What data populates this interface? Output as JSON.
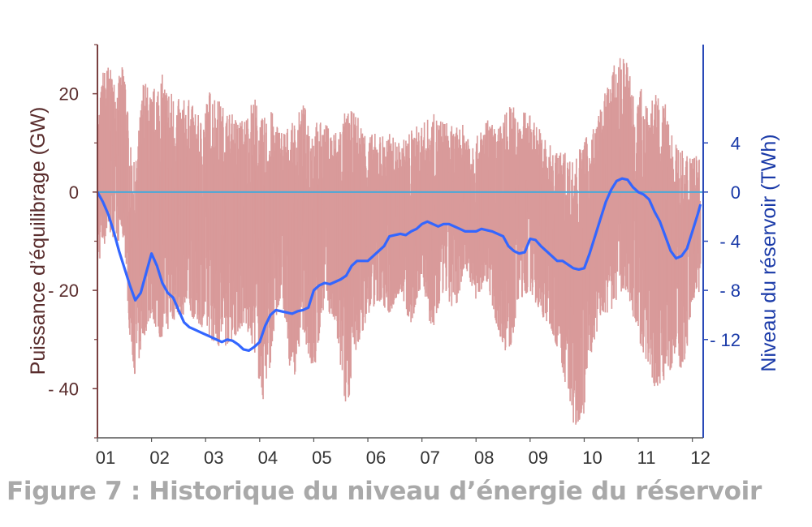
{
  "chart_data": {
    "type": "line",
    "caption": "Figure 7 : Historique du niveau d’énergie du réservoir",
    "xlabel": "",
    "x_tick_labels": [
      "01",
      "02",
      "03",
      "04",
      "05",
      "06",
      "07",
      "08",
      "09",
      "10",
      "11",
      "12"
    ],
    "xlim": [
      1,
      12.2
    ],
    "left_axis": {
      "label": "Puissance d’équilibrage (GW)",
      "ylim": [
        -50,
        30
      ],
      "tick_values": [
        20,
        0,
        -20,
        -40
      ],
      "tick_labels": [
        "20",
        "0",
        "- 20",
        "- 40"
      ],
      "color": "#5a2d2d"
    },
    "right_axis": {
      "label": "Niveau du réservoir (TWh)",
      "ylim": [
        -20,
        12
      ],
      "tick_values": [
        4,
        0,
        -4,
        -8,
        -12
      ],
      "tick_labels": [
        "4",
        "0",
        "- 4",
        "- 8",
        "- 12"
      ],
      "color": "#1a3aa8"
    },
    "grid": true,
    "zero_line_color": "#4aa8d8",
    "series": [
      {
        "axis": "left",
        "color": "#d99a9a",
        "style": "dense-bars",
        "x": [
          1.0,
          1.1,
          1.2,
          1.35,
          1.5,
          1.6,
          1.7,
          1.85,
          2.0,
          2.15,
          2.3,
          2.5,
          2.7,
          2.9,
          3.1,
          3.3,
          3.5,
          3.7,
          3.9,
          4.05,
          4.2,
          4.4,
          4.6,
          4.8,
          5.0,
          5.2,
          5.4,
          5.6,
          5.8,
          6.0,
          6.2,
          6.4,
          6.6,
          6.8,
          7.0,
          7.2,
          7.4,
          7.6,
          7.8,
          8.0,
          8.2,
          8.4,
          8.6,
          8.8,
          9.0,
          9.2,
          9.4,
          9.6,
          9.8,
          10.0,
          10.1,
          10.3,
          10.5,
          10.7,
          10.8,
          10.95,
          11.1,
          11.3,
          11.5,
          11.7,
          11.85,
          12.0,
          12.15
        ],
        "values_max": [
          14,
          25,
          26,
          22,
          27,
          10,
          5,
          24,
          20,
          25,
          22,
          19,
          19,
          15,
          22,
          18,
          16,
          15,
          20,
          15,
          17,
          13,
          14,
          18,
          15,
          14,
          13,
          17,
          16,
          12,
          12,
          12,
          10,
          13,
          14,
          16,
          15,
          13,
          14,
          11,
          15,
          13,
          18,
          17,
          16,
          13,
          9,
          9,
          7,
          11,
          12,
          17,
          25,
          28,
          27,
          20,
          22,
          20,
          18,
          10,
          8,
          10,
          6
        ],
        "values_min": [
          -15,
          -12,
          -8,
          -10,
          -10,
          -30,
          -38,
          -30,
          -25,
          -30,
          -28,
          -25,
          -25,
          -27,
          -30,
          -32,
          -30,
          -27,
          -32,
          -43,
          -35,
          -20,
          -40,
          -28,
          -38,
          -22,
          -28,
          -45,
          -32,
          -25,
          -22,
          -25,
          -20,
          -28,
          -18,
          -30,
          -20,
          -25,
          -15,
          -22,
          -18,
          -28,
          -34,
          -22,
          -20,
          -25,
          -28,
          -36,
          -48,
          -45,
          -34,
          -26,
          -24,
          -20,
          -20,
          -28,
          -33,
          -40,
          -38,
          -34,
          -38,
          -22,
          -20
        ]
      },
      {
        "axis": "right",
        "name": "",
        "color": "#3366ff",
        "x": [
          1.0,
          1.1,
          1.2,
          1.3,
          1.4,
          1.5,
          1.6,
          1.7,
          1.8,
          1.9,
          2.0,
          2.1,
          2.2,
          2.3,
          2.4,
          2.5,
          2.6,
          2.7,
          2.8,
          2.9,
          3.0,
          3.1,
          3.2,
          3.3,
          3.4,
          3.5,
          3.6,
          3.7,
          3.8,
          3.9,
          4.0,
          4.1,
          4.2,
          4.3,
          4.4,
          4.5,
          4.6,
          4.7,
          4.8,
          4.9,
          5.0,
          5.1,
          5.2,
          5.3,
          5.4,
          5.5,
          5.6,
          5.7,
          5.8,
          5.9,
          6.0,
          6.1,
          6.2,
          6.3,
          6.4,
          6.5,
          6.6,
          6.7,
          6.8,
          6.9,
          7.0,
          7.1,
          7.2,
          7.3,
          7.4,
          7.5,
          7.6,
          7.7,
          7.8,
          7.9,
          8.0,
          8.1,
          8.2,
          8.3,
          8.4,
          8.5,
          8.6,
          8.7,
          8.8,
          8.9,
          9.0,
          9.1,
          9.2,
          9.3,
          9.4,
          9.5,
          9.6,
          9.7,
          9.8,
          9.9,
          10.0,
          10.1,
          10.2,
          10.3,
          10.4,
          10.5,
          10.6,
          10.7,
          10.8,
          10.9,
          11.0,
          11.1,
          11.2,
          11.3,
          11.4,
          11.5,
          11.6,
          11.7,
          11.8,
          11.9,
          12.0,
          12.1,
          12.15
        ],
        "values": [
          0,
          -0.8,
          -1.8,
          -3.2,
          -4.8,
          -6.2,
          -7.6,
          -8.8,
          -8.2,
          -6.6,
          -5.0,
          -6.0,
          -7.4,
          -8.2,
          -8.6,
          -9.6,
          -10.6,
          -11.0,
          -11.2,
          -11.4,
          -11.6,
          -11.8,
          -12.0,
          -12.2,
          -12.0,
          -12.1,
          -12.4,
          -12.8,
          -12.9,
          -12.6,
          -12.2,
          -10.9,
          -10.0,
          -9.6,
          -9.7,
          -9.8,
          -9.9,
          -9.7,
          -9.6,
          -9.4,
          -8.0,
          -7.6,
          -7.4,
          -7.5,
          -7.3,
          -7.1,
          -6.8,
          -6.0,
          -5.6,
          -5.6,
          -5.6,
          -5.2,
          -4.8,
          -4.4,
          -3.6,
          -3.5,
          -3.4,
          -3.5,
          -3.2,
          -3.0,
          -2.6,
          -2.4,
          -2.6,
          -2.8,
          -2.6,
          -2.6,
          -2.8,
          -3.0,
          -3.2,
          -3.2,
          -3.2,
          -3.0,
          -3.1,
          -3.2,
          -3.4,
          -3.6,
          -4.4,
          -4.8,
          -5.0,
          -4.9,
          -3.8,
          -3.9,
          -4.4,
          -4.8,
          -5.2,
          -5.6,
          -5.6,
          -5.9,
          -6.2,
          -6.3,
          -6.2,
          -5.0,
          -3.6,
          -2.2,
          -0.8,
          0.2,
          0.9,
          1.1,
          1.0,
          0.4,
          0.0,
          -0.2,
          -0.6,
          -1.6,
          -2.4,
          -3.6,
          -4.8,
          -5.4,
          -5.2,
          -4.6,
          -3.2,
          -1.8,
          -1.0
        ]
      }
    ]
  }
}
